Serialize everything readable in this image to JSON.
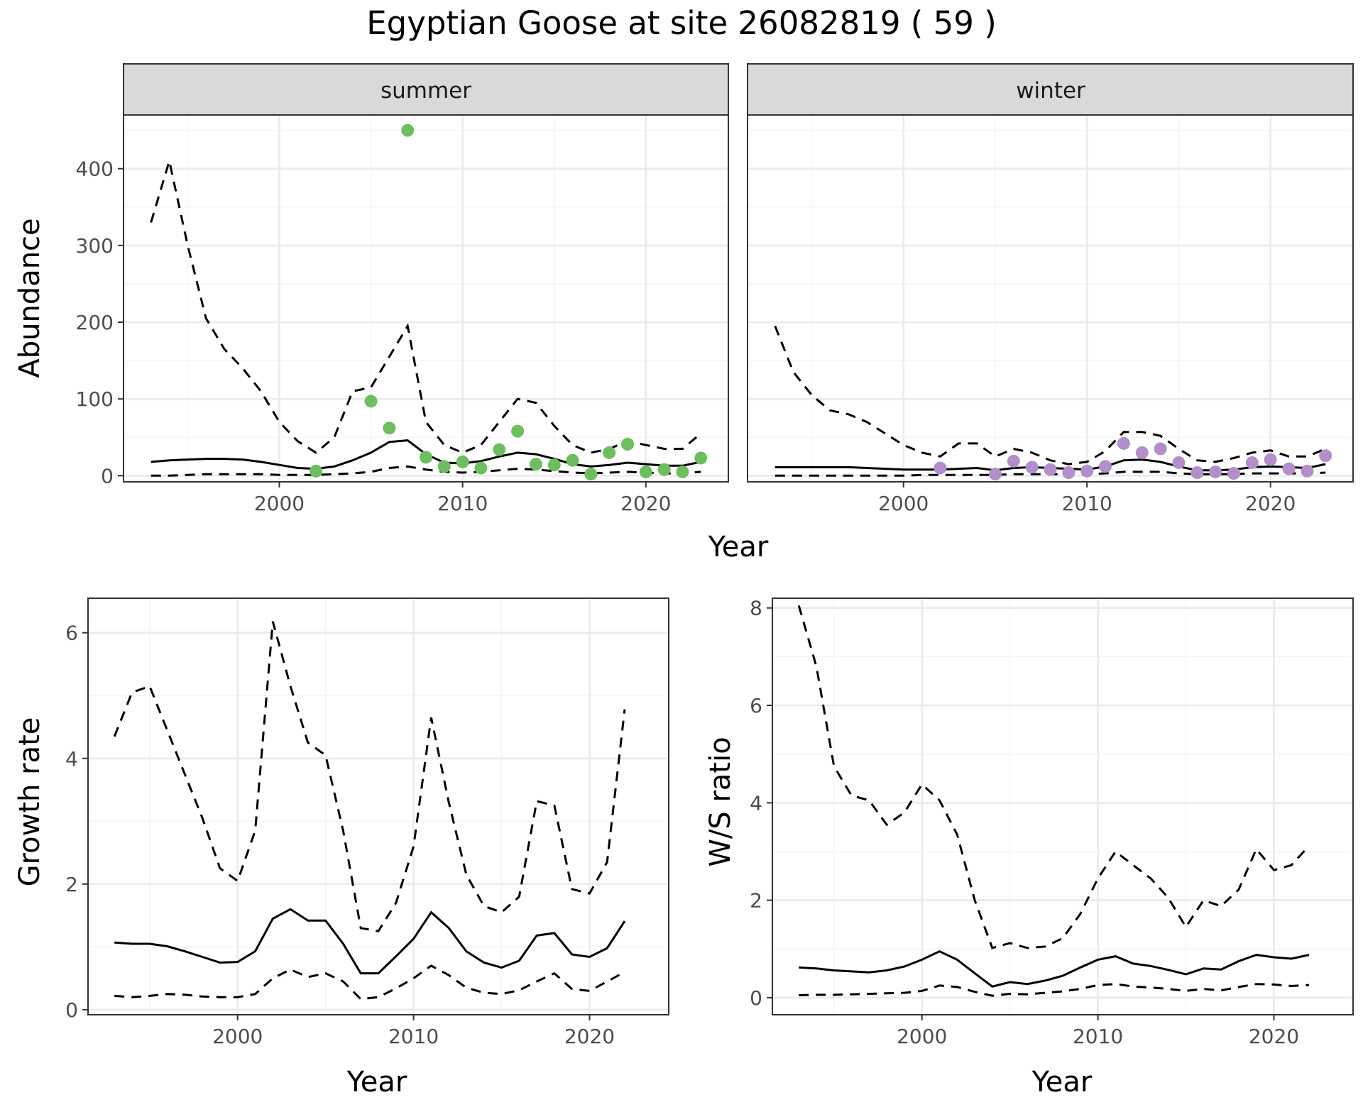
{
  "title": "Egyptian Goose at site 26082819 ( 59 )",
  "colors": {
    "summer_points": "#6DBE5F",
    "winter_points": "#B28ECA",
    "strip_fill": "#D9D9D9",
    "grid_major": "#EBEBEB",
    "grid_minor": "#F4F4F4",
    "panel_border": "#333333",
    "tick_text": "#4D4D4D",
    "line": "#000000"
  },
  "chart_data": [
    {
      "id": "abundance",
      "type": "line",
      "facets": [
        "summer",
        "winter"
      ],
      "xlabel": "Year",
      "ylabel": "Abundance",
      "xlim": [
        1991.5,
        2024.5
      ],
      "ylim": [
        -8,
        470
      ],
      "xticks": [
        2000,
        2010,
        2020
      ],
      "yticks": [
        0,
        100,
        200,
        300,
        400
      ],
      "grid": true,
      "panels": [
        {
          "facet": "summer",
          "x": [
            1993,
            1994,
            1995,
            1996,
            1997,
            1998,
            1999,
            2000,
            2001,
            2002,
            2003,
            2004,
            2005,
            2006,
            2007,
            2008,
            2009,
            2010,
            2011,
            2012,
            2013,
            2014,
            2015,
            2016,
            2017,
            2018,
            2019,
            2020,
            2021,
            2022,
            2023
          ],
          "mean": [
            18,
            20,
            21,
            22,
            22,
            21,
            18,
            14,
            10,
            9,
            12,
            20,
            30,
            44,
            46,
            28,
            17,
            16,
            19,
            25,
            30,
            28,
            22,
            15,
            12,
            14,
            17,
            15,
            13,
            13,
            18
          ],
          "upper": [
            330,
            410,
            300,
            205,
            165,
            140,
            110,
            70,
            45,
            30,
            50,
            110,
            115,
            155,
            195,
            70,
            40,
            30,
            40,
            70,
            100,
            95,
            65,
            40,
            30,
            35,
            45,
            40,
            35,
            35,
            55
          ],
          "lower": [
            0,
            0,
            1,
            2,
            2,
            2,
            2,
            1,
            1,
            1,
            2,
            3,
            5,
            10,
            12,
            8,
            5,
            4,
            5,
            7,
            9,
            8,
            6,
            4,
            3,
            4,
            5,
            4,
            3,
            3,
            5
          ],
          "points": {
            "x": [
              2002,
              2005,
              2006,
              2007,
              2008,
              2009,
              2010,
              2011,
              2012,
              2013,
              2014,
              2015,
              2016,
              2017,
              2018,
              2019,
              2020,
              2021,
              2022,
              2023
            ],
            "y": [
              6,
              97,
              62,
              450,
              24,
              12,
              18,
              10,
              34,
              58,
              15,
              14,
              20,
              2,
              30,
              41,
              5,
              8,
              5,
              23
            ]
          }
        },
        {
          "facet": "winter",
          "x": [
            1993,
            1994,
            1995,
            1996,
            1997,
            1998,
            1999,
            2000,
            2001,
            2002,
            2003,
            2004,
            2005,
            2006,
            2007,
            2008,
            2009,
            2010,
            2011,
            2012,
            2013,
            2014,
            2015,
            2016,
            2017,
            2018,
            2019,
            2020,
            2021,
            2022,
            2023
          ],
          "mean": [
            11,
            11,
            11,
            11,
            11,
            10,
            9,
            8,
            8,
            8,
            9,
            10,
            7,
            10,
            11,
            10,
            9,
            8,
            12,
            20,
            21,
            18,
            12,
            7,
            7,
            8,
            11,
            12,
            11,
            10,
            15
          ],
          "upper": [
            195,
            135,
            105,
            85,
            80,
            70,
            55,
            40,
            30,
            25,
            42,
            42,
            25,
            35,
            30,
            20,
            15,
            18,
            32,
            57,
            57,
            52,
            35,
            20,
            18,
            23,
            30,
            33,
            25,
            25,
            35
          ],
          "lower": [
            0,
            0,
            0,
            0,
            0,
            0,
            0,
            0,
            1,
            1,
            1,
            1,
            1,
            2,
            2,
            2,
            2,
            2,
            3,
            5,
            5,
            5,
            3,
            2,
            2,
            2,
            3,
            3,
            3,
            3,
            4
          ],
          "points": {
            "x": [
              2002,
              2005,
              2006,
              2007,
              2008,
              2009,
              2010,
              2011,
              2012,
              2013,
              2014,
              2015,
              2016,
              2017,
              2018,
              2019,
              2020,
              2021,
              2022,
              2023
            ],
            "y": [
              10,
              2,
              19,
              11,
              8,
              4,
              6,
              12,
              42,
              30,
              35,
              17,
              4,
              5,
              3,
              17,
              21,
              9,
              6,
              26
            ]
          }
        }
      ]
    },
    {
      "id": "growth",
      "type": "line",
      "xlabel": "Year",
      "ylabel": "Growth rate",
      "xlim": [
        1991.5,
        2024.5
      ],
      "ylim": [
        -0.08,
        6.55
      ],
      "xticks": [
        2000,
        2010,
        2020
      ],
      "yticks": [
        0,
        2,
        4,
        6
      ],
      "grid": true,
      "x": [
        1993,
        1994,
        1995,
        1996,
        1997,
        1998,
        1999,
        2000,
        2001,
        2002,
        2003,
        2004,
        2005,
        2006,
        2007,
        2008,
        2009,
        2010,
        2011,
        2012,
        2013,
        2014,
        2015,
        2016,
        2017,
        2018,
        2019,
        2020,
        2021,
        2022
      ],
      "mean": [
        1.07,
        1.05,
        1.05,
        1.01,
        0.93,
        0.84,
        0.75,
        0.76,
        0.93,
        1.45,
        1.6,
        1.42,
        1.42,
        1.05,
        0.58,
        0.58,
        0.85,
        1.13,
        1.55,
        1.3,
        0.93,
        0.75,
        0.67,
        0.78,
        1.18,
        1.22,
        0.88,
        0.84,
        0.98,
        1.41
      ],
      "upper": [
        4.35,
        5.05,
        5.15,
        4.45,
        3.75,
        3.05,
        2.25,
        2.05,
        2.85,
        6.18,
        5.15,
        4.25,
        4.05,
        2.85,
        1.3,
        1.25,
        1.7,
        2.6,
        4.65,
        3.3,
        2.15,
        1.65,
        1.55,
        1.8,
        3.32,
        3.25,
        1.92,
        1.85,
        2.35,
        4.78
      ],
      "lower": [
        0.22,
        0.2,
        0.22,
        0.25,
        0.24,
        0.21,
        0.2,
        0.2,
        0.25,
        0.5,
        0.64,
        0.52,
        0.58,
        0.45,
        0.17,
        0.2,
        0.34,
        0.5,
        0.7,
        0.55,
        0.35,
        0.27,
        0.25,
        0.31,
        0.45,
        0.58,
        0.33,
        0.3,
        0.45,
        0.6
      ]
    },
    {
      "id": "ratio",
      "type": "line",
      "xlabel": "Year",
      "ylabel": "W/S ratio",
      "xlim": [
        1991.5,
        2024.5
      ],
      "ylim": [
        -0.35,
        8.2
      ],
      "xticks": [
        2000,
        2010,
        2020
      ],
      "yticks": [
        0,
        2,
        4,
        6,
        8
      ],
      "grid": true,
      "x": [
        1993,
        1994,
        1995,
        1996,
        1997,
        1998,
        1999,
        2000,
        2001,
        2002,
        2003,
        2004,
        2005,
        2006,
        2007,
        2008,
        2009,
        2010,
        2011,
        2012,
        2013,
        2014,
        2015,
        2016,
        2017,
        2018,
        2019,
        2020,
        2021,
        2022
      ],
      "mean": [
        0.62,
        0.6,
        0.56,
        0.54,
        0.52,
        0.56,
        0.64,
        0.78,
        0.95,
        0.78,
        0.5,
        0.23,
        0.32,
        0.28,
        0.35,
        0.45,
        0.62,
        0.78,
        0.85,
        0.7,
        0.65,
        0.57,
        0.48,
        0.6,
        0.58,
        0.75,
        0.88,
        0.83,
        0.8,
        0.88
      ],
      "upper": [
        8.05,
        6.8,
        4.75,
        4.15,
        4.05,
        3.55,
        3.8,
        4.38,
        4.05,
        3.35,
        2.0,
        1.02,
        1.12,
        1.02,
        1.05,
        1.22,
        1.72,
        2.45,
        3.0,
        2.72,
        2.45,
        2.05,
        1.45,
        2.0,
        1.88,
        2.22,
        3.05,
        2.62,
        2.72,
        3.12
      ],
      "lower": [
        0.05,
        0.06,
        0.06,
        0.07,
        0.08,
        0.09,
        0.1,
        0.14,
        0.25,
        0.22,
        0.12,
        0.04,
        0.08,
        0.07,
        0.1,
        0.13,
        0.18,
        0.26,
        0.28,
        0.23,
        0.21,
        0.18,
        0.14,
        0.18,
        0.15,
        0.22,
        0.28,
        0.27,
        0.24,
        0.26
      ]
    }
  ]
}
